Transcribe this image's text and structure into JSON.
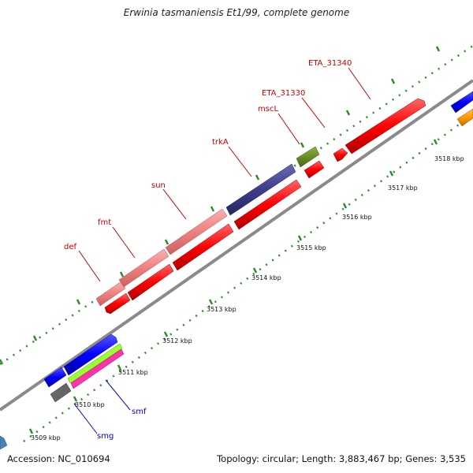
{
  "title": "Erwinia tasmaniensis Et1/99, complete genome",
  "footer": {
    "accession": "Accession: NC_010694",
    "summary": "Topology: circular; Length: 3,883,467 bp; Genes: 3,535"
  },
  "ticks": [
    "3509 kbp",
    "3510 kbp",
    "3511 kbp",
    "3512 kbp",
    "3513 kbp",
    "3514 kbp",
    "3515 kbp",
    "3516 kbp",
    "3517 kbp",
    "3518 kbp"
  ],
  "gene_labels": [
    {
      "id": "def",
      "text": "def",
      "color": "#cc0000"
    },
    {
      "id": "fmt",
      "text": "fmt",
      "color": "#cc0000"
    },
    {
      "id": "sun",
      "text": "sun",
      "color": "#cc0000"
    },
    {
      "id": "trkA",
      "text": "trkA",
      "color": "#cc0000"
    },
    {
      "id": "mscL",
      "text": "mscL",
      "color": "#cc0000"
    },
    {
      "id": "ETA_31330",
      "text": "ETA_31330",
      "color": "#cc0000"
    },
    {
      "id": "ETA_31340",
      "text": "ETA_31340",
      "color": "#cc0000"
    },
    {
      "id": "smf",
      "text": "smf",
      "color": "#0000cc"
    },
    {
      "id": "smg",
      "text": "smg",
      "color": "#0000cc"
    }
  ],
  "colors": {
    "backbone": "#8a8a8a",
    "tick_dots": "#2e8b2e",
    "cds": "#ff0000",
    "rna_light": "#f08080",
    "gene_dark": "#3d3d8f",
    "gene_green": "#6b8e23",
    "gene_blue": "#0000ff",
    "gene_lime": "#99ff33",
    "gene_magenta": "#ff33aa",
    "gene_grey": "#666666",
    "gene_orange": "#ff9900",
    "gene_teal": "#4682b4"
  }
}
